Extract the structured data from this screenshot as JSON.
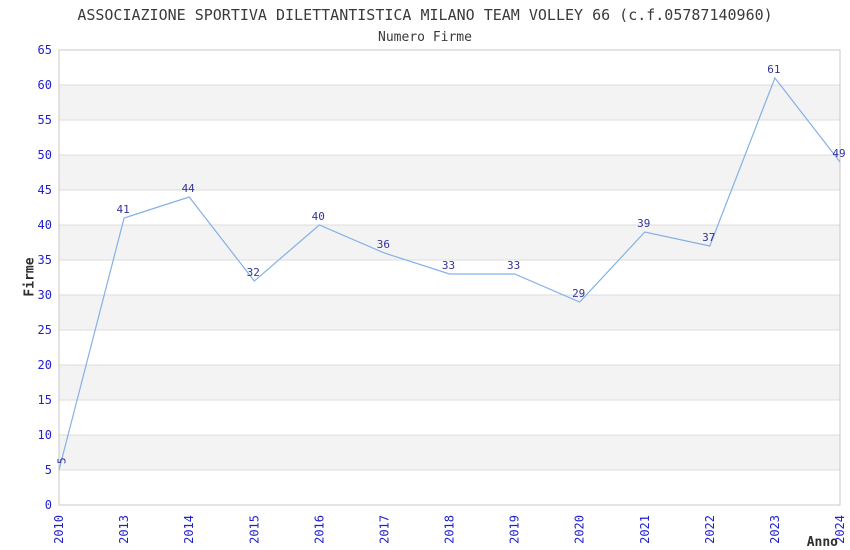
{
  "chart_data": {
    "type": "line",
    "title": "ASSOCIAZIONE SPORTIVA DILETTANTISTICA MILANO TEAM VOLLEY 66 (c.f.05787140960)",
    "subtitle": "Numero Firme",
    "xlabel": "Anno",
    "ylabel": "Firme",
    "categories": [
      "2010",
      "2013",
      "2014",
      "2015",
      "2016",
      "2017",
      "2018",
      "2019",
      "2020",
      "2021",
      "2022",
      "2023",
      "2024"
    ],
    "values": [
      5,
      41,
      44,
      32,
      40,
      36,
      33,
      33,
      29,
      39,
      37,
      61,
      49
    ],
    "ylim": [
      0,
      65
    ],
    "ytick_step": 5,
    "yticks": [
      0,
      5,
      10,
      15,
      20,
      25,
      30,
      35,
      40,
      45,
      50,
      55,
      60,
      65
    ],
    "grid": "alternating-horizontal-bands",
    "legend": "none",
    "point_markers": false,
    "colors": {
      "line": "#85b1e6",
      "point_label": "#333399",
      "tick_label": "#2222cc",
      "title": "#3a3a3a",
      "subtitle": "#3a3a3a",
      "axis_title": "#2e2e2e",
      "band_fill": "#f3f3f3",
      "band_edge": "#dcdcdc",
      "plot_border": "#c8c8c8",
      "background": "#ffffff"
    }
  }
}
